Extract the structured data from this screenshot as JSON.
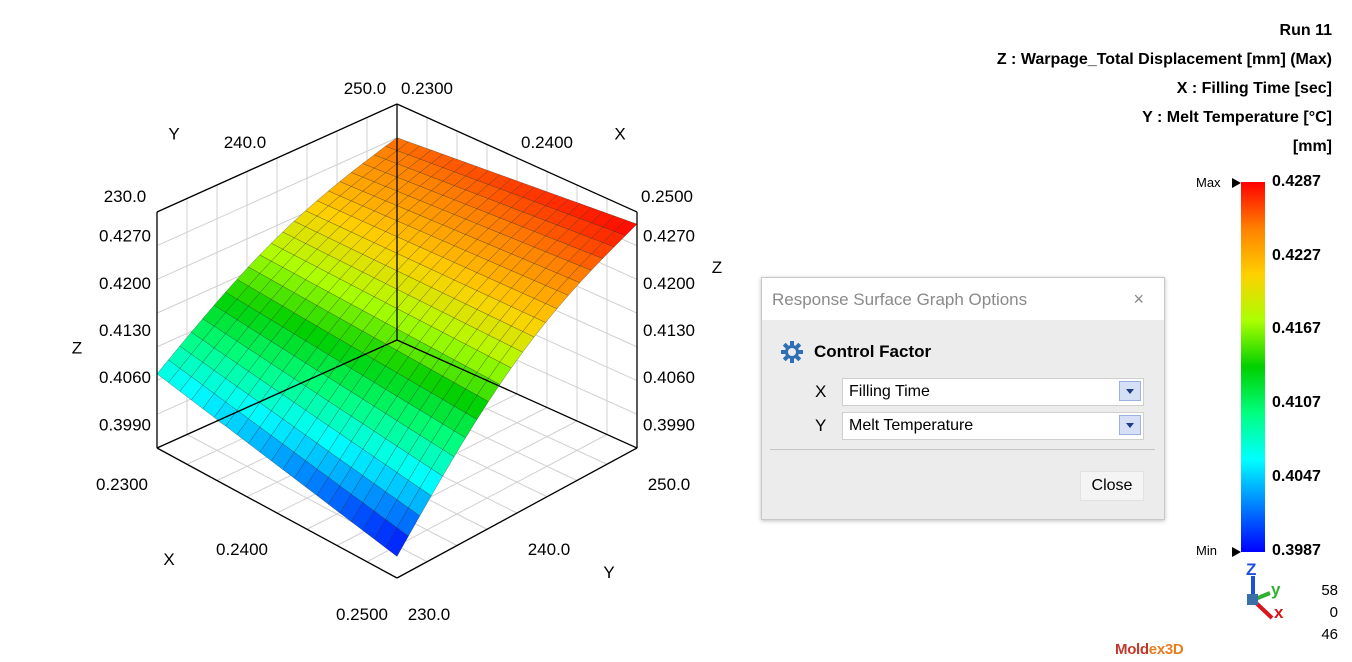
{
  "info": {
    "run": "Run 11",
    "z_label": "Z : Warpage_Total Displacement [mm] (Max)",
    "x_label": "X : Filling Time [sec]",
    "y_label": "Y : Melt Temperature [°C]",
    "unit": "[mm]"
  },
  "chart_data": {
    "type": "surface",
    "title": "",
    "xlabel": "X",
    "ylabel": "Y",
    "zlabel": "Z",
    "x_range": [
      0.23,
      0.25
    ],
    "y_range": [
      230.0,
      250.0
    ],
    "z_range": [
      0.399,
      0.4287
    ],
    "x_ticks": [
      "0.2300",
      "0.2400",
      "0.2500"
    ],
    "y_ticks": [
      "230.0",
      "240.0",
      "250.0"
    ],
    "z_ticks": [
      "0.3990",
      "0.4060",
      "0.4130",
      "0.4200",
      "0.4270"
    ],
    "surface_corners": [
      {
        "x": 0.23,
        "y": 230.0,
        "z": 0.4065
      },
      {
        "x": 0.25,
        "y": 230.0,
        "z": 0.3987
      },
      {
        "x": 0.23,
        "y": 250.0,
        "z": 0.4255
      },
      {
        "x": 0.25,
        "y": 250.0,
        "z": 0.4287
      }
    ],
    "grid_resolution": 21
  },
  "colorbar": {
    "max_tag": "Max",
    "min_tag": "Min",
    "labels": [
      "0.4287",
      "0.4227",
      "0.4167",
      "0.4107",
      "0.4047",
      "0.3987"
    ],
    "colors": [
      "#ff0000",
      "#ff8000",
      "#ffd000",
      "#aaff00",
      "#00d000",
      "#00ff80",
      "#00ffff",
      "#0080ff",
      "#0000ff"
    ]
  },
  "orientation": {
    "z_axis": "Z",
    "y_axis": "y",
    "x_axis": "x",
    "values": [
      "58",
      "0",
      "46"
    ]
  },
  "dialog": {
    "title": "Response Surface Graph Options",
    "close_glyph": "×",
    "section": "Control Factor",
    "x_label": "X",
    "x_value": "Filling Time",
    "y_label": "Y",
    "y_value": "Melt Temperature",
    "close_button": "Close"
  },
  "logo": {
    "part1": "Mold",
    "part2": "ex3D"
  }
}
